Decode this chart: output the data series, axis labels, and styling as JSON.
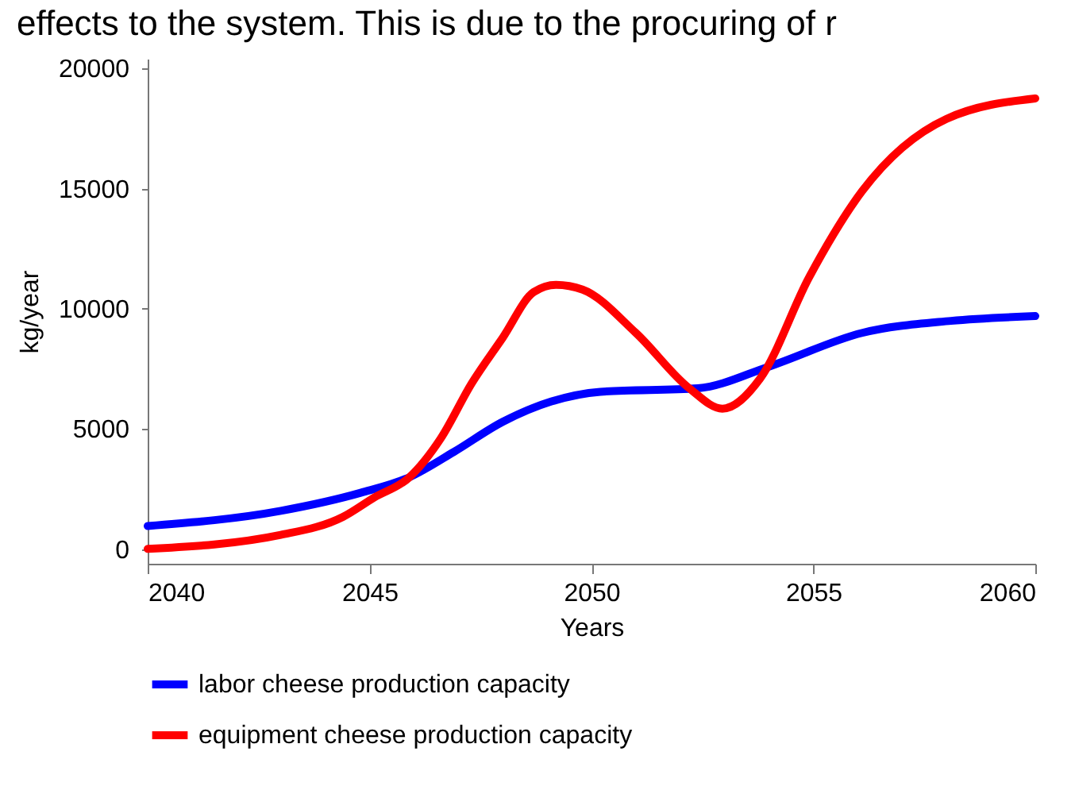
{
  "chart_data": {
    "type": "line",
    "title": "effects to the system. This is due to the procuring of r",
    "xlabel": "Years",
    "ylabel": "kg/year",
    "xlim": [
      2040,
      2060
    ],
    "xticks": [
      2040,
      2045,
      2050,
      2055,
      2060
    ],
    "ylim": [
      -600,
      20400
    ],
    "yticks": [
      0,
      5000,
      10000,
      15000,
      20000
    ],
    "grid": false,
    "legend": "bottom",
    "marker": "none",
    "line_style": "solid",
    "series": [
      {
        "name": "labor cheese production capacity",
        "color": "#0000ff",
        "x": [
          2040,
          2043,
          2044.8,
          2045.9,
          2046.9,
          2048,
          2049.1,
          2050.2,
          2052.4,
          2054,
          2056.1,
          2058.1,
          2060
        ],
        "values": [
          970,
          1600,
          2350,
          3000,
          4050,
          5300,
          6150,
          6550,
          6700,
          7600,
          9000,
          9500,
          9700
        ]
      },
      {
        "name": "equipment cheese production capacity",
        "color": "#ff0000",
        "x": [
          2040,
          2043,
          2044.4,
          2045.1,
          2045.9,
          2046.6,
          2047.3,
          2048,
          2048.7,
          2049.2,
          2049.8,
          2051,
          2052.2,
          2052.95,
          2053.8,
          2054.9,
          2056.1,
          2058,
          2060
        ],
        "values": [
          20,
          600,
          1350,
          2150,
          3000,
          4600,
          6900,
          8800,
          10700,
          11000,
          10800,
          9000,
          6700,
          5850,
          7100,
          11300,
          14900,
          17900,
          18750
        ]
      }
    ]
  }
}
